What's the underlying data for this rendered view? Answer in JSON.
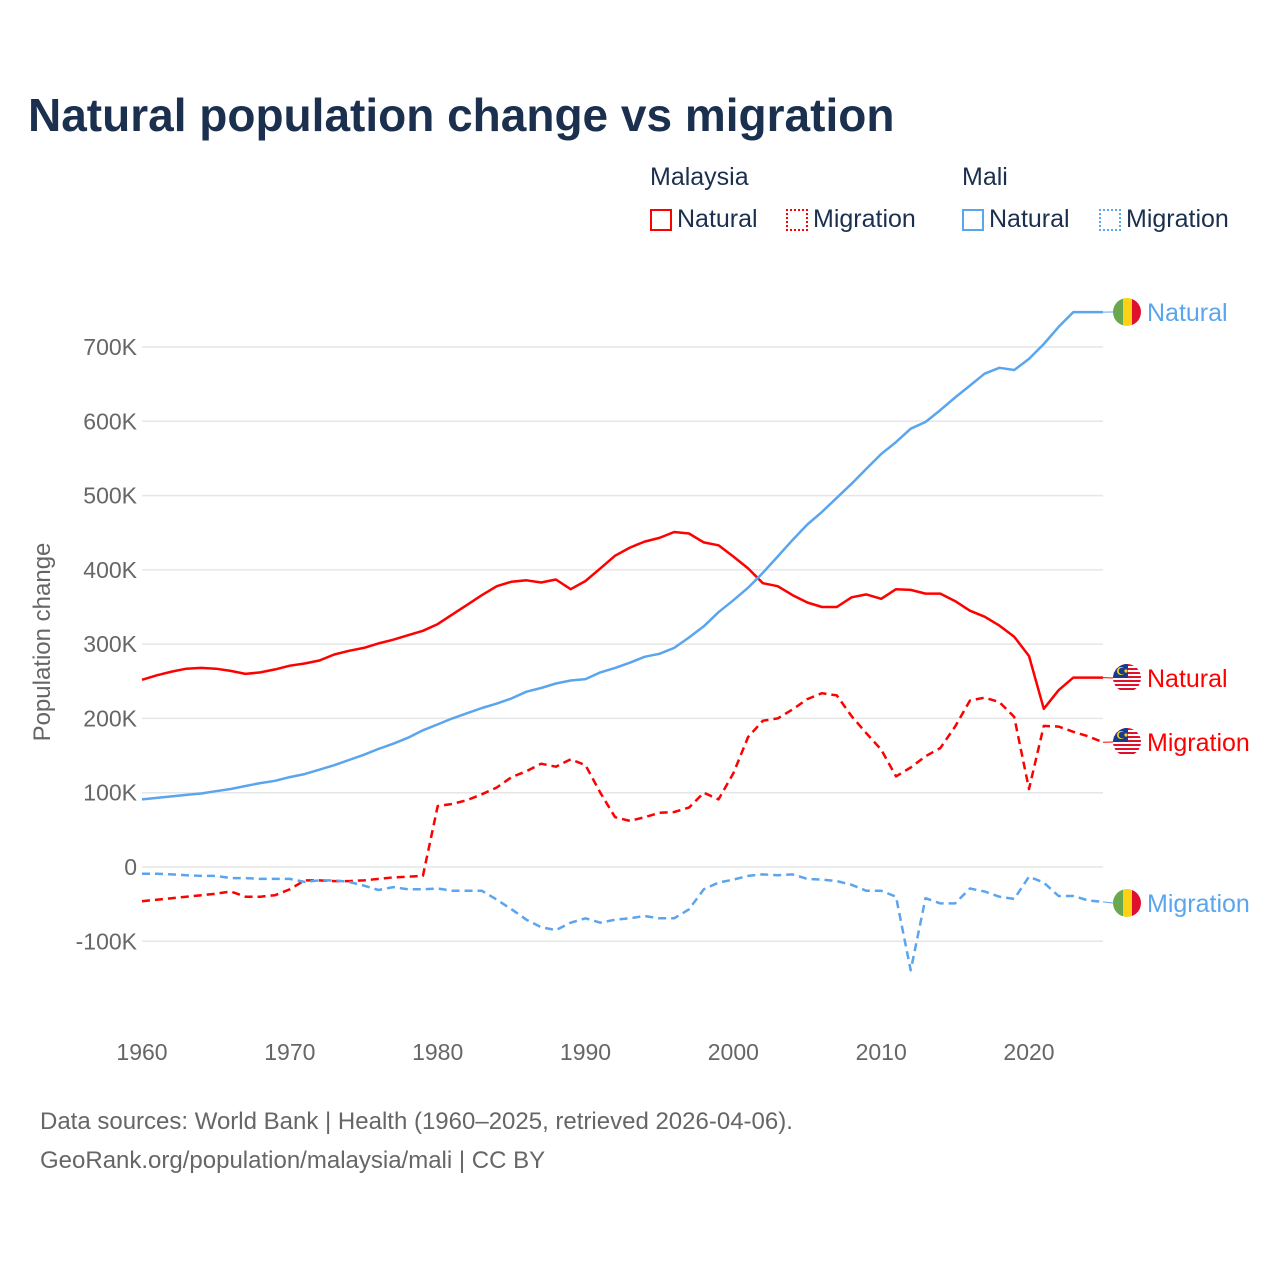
{
  "title": "Natural population change vs migration",
  "legend": {
    "groups": [
      {
        "name": "Malaysia",
        "items": [
          "Natural",
          "Migration"
        ],
        "color": "#ff0000"
      },
      {
        "name": "Mali",
        "items": [
          "Natural",
          "Migration"
        ],
        "color": "#5aa5ee"
      }
    ]
  },
  "footer": {
    "line1": "Data sources: World Bank | Health (1960–2025, retrieved 2026-04-06).",
    "line2": "GeoRank.org/population/malaysia/mali | CC BY"
  },
  "chart_data": {
    "type": "line",
    "title": "Natural population change vs migration",
    "xlabel": "",
    "ylabel": "Population change",
    "xlim": [
      1960,
      2025
    ],
    "ylim": [
      -150000,
      760000
    ],
    "xticks": [
      "1960",
      "1970",
      "1980",
      "1990",
      "2000",
      "2010",
      "2020"
    ],
    "yticks": [
      {
        "value": 700000,
        "label": "700K"
      },
      {
        "value": 600000,
        "label": "600K"
      },
      {
        "value": 500000,
        "label": "500K"
      },
      {
        "value": 400000,
        "label": "400K"
      },
      {
        "value": 300000,
        "label": "300K"
      },
      {
        "value": 200000,
        "label": "200K"
      },
      {
        "value": 100000,
        "label": "100K"
      },
      {
        "value": 0,
        "label": "0"
      },
      {
        "value": -100000,
        "label": "-100K"
      }
    ],
    "grid": true,
    "legend_position": "top-right",
    "x_start": 1960,
    "series": [
      {
        "name": "Malaysia Natural",
        "end_label": "Natural",
        "country": "Malaysia",
        "color": "#ff0000",
        "dash": false,
        "values_k": [
          252,
          258,
          263,
          267,
          268,
          267,
          264,
          260,
          262,
          266,
          271,
          274,
          278,
          286,
          291,
          295,
          301,
          306,
          312,
          318,
          327,
          340,
          353,
          366,
          378,
          384,
          386,
          383,
          387,
          374,
          385,
          402,
          419,
          430,
          438,
          443,
          451,
          449,
          437,
          433,
          418,
          402,
          382,
          378,
          366,
          356,
          350,
          350,
          363,
          367,
          361,
          374,
          373,
          368,
          368,
          358,
          345,
          337,
          325,
          310,
          284,
          213,
          238,
          255
        ]
      },
      {
        "name": "Malaysia Migration",
        "end_label": "Migration",
        "country": "Malaysia",
        "color": "#ff0000",
        "dash": true,
        "values_k": [
          -46,
          -44,
          -42,
          -40,
          -38,
          -36,
          -33,
          -40,
          -40,
          -38,
          -30,
          -18,
          -18,
          -19,
          -19,
          -18,
          -16,
          -14,
          -13,
          -12,
          82,
          85,
          90,
          98,
          107,
          121,
          129,
          139,
          135,
          145,
          137,
          100,
          67,
          62,
          67,
          73,
          74,
          80,
          100,
          91,
          126,
          175,
          197,
          200,
          212,
          226,
          234,
          231,
          203,
          180,
          158,
          122,
          134,
          149,
          160,
          189,
          224,
          228,
          222,
          202,
          105,
          190,
          189,
          182,
          176,
          168
        ]
      },
      {
        "name": "Mali Natural",
        "end_label": "Natural",
        "country": "Mali",
        "color": "#5aa5ee",
        "dash": false,
        "values_k": [
          91,
          93,
          95,
          97,
          99,
          102,
          105,
          109,
          113,
          116,
          121,
          125,
          131,
          137,
          144,
          151,
          159,
          166,
          174,
          184,
          192,
          200,
          207,
          214,
          220,
          227,
          236,
          241,
          247,
          251,
          253,
          262,
          268,
          275,
          283,
          287,
          295,
          309,
          324,
          343,
          359,
          376,
          396,
          418,
          440,
          461,
          478,
          497,
          516,
          536,
          556,
          572,
          590,
          599,
          615,
          632,
          648,
          664,
          672,
          669,
          684,
          704,
          727,
          747
        ]
      },
      {
        "name": "Mali Migration",
        "end_label": "Migration",
        "country": "Mali",
        "color": "#5aa5ee",
        "dash": true,
        "values_k": [
          -9,
          -9,
          -10,
          -11,
          -12,
          -12,
          -15,
          -15,
          -16,
          -16,
          -16,
          -20,
          -18,
          -18,
          -20,
          -25,
          -31,
          -27,
          -30,
          -30,
          -29,
          -32,
          -32,
          -32,
          -44,
          -57,
          -71,
          -81,
          -85,
          -75,
          -69,
          -75,
          -71,
          -69,
          -66,
          -69,
          -69,
          -57,
          -30,
          -21,
          -17,
          -12,
          -10,
          -11,
          -10,
          -16,
          -17,
          -19,
          -24,
          -32,
          -32,
          -40,
          -139,
          -42,
          -49,
          -49,
          -29,
          -33,
          -40,
          -43,
          -13,
          -21,
          -39,
          -39,
          -45,
          -47
        ]
      }
    ],
    "end_labels": [
      {
        "series": 2,
        "text": "Natural"
      },
      {
        "series": 0,
        "text": "Natural"
      },
      {
        "series": 1,
        "text": "Migration"
      },
      {
        "series": 3,
        "text": "Migration"
      }
    ]
  }
}
